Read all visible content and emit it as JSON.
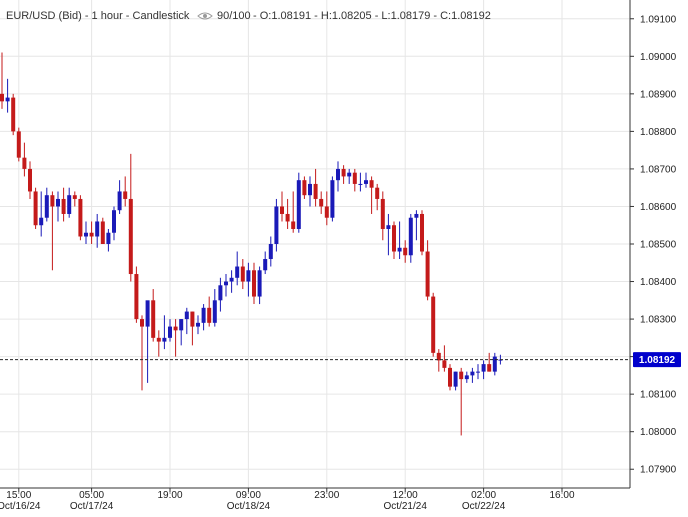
{
  "header": {
    "symbol_line": "EUR/USD (Bid) - 1 hour - Candlestick",
    "opacity_label": "90/100",
    "ohlc_text": "- O:1.08191 - H:1.08205 - L:1.08179 - C:1.08192"
  },
  "colors": {
    "up": "#1a1ab8",
    "down": "#c41a1a",
    "grid": "#e6e6e6",
    "axis": "#333333",
    "price_tag_bg": "#0000cc",
    "price_tag_text": "#ffffff"
  },
  "icons": {
    "opacity": "eye-icon"
  },
  "chart_data": {
    "type": "candlestick",
    "title": "EUR/USD (Bid) - 1 hour - Candlestick",
    "ylim": [
      1.0785,
      1.0915
    ],
    "y_ticks": [
      "1.07900",
      "1.08000",
      "1.08100",
      "1.08200",
      "1.08300",
      "1.08400",
      "1.08500",
      "1.08600",
      "1.08700",
      "1.08800",
      "1.08900",
      "1.09000",
      "1.09100"
    ],
    "x_ticks": [
      {
        "index": 3,
        "time": "15:00",
        "date": "Oct/16/24"
      },
      {
        "index": 16,
        "time": "05:00",
        "date": "Oct/17/24"
      },
      {
        "index": 30,
        "time": "19:00",
        "date": ""
      },
      {
        "index": 44,
        "time": "09:00",
        "date": "Oct/18/24"
      },
      {
        "index": 58,
        "time": "23:00",
        "date": ""
      },
      {
        "index": 72,
        "time": "12:00",
        "date": "Oct/21/24"
      },
      {
        "index": 86,
        "time": "02:00",
        "date": "Oct/22/24"
      },
      {
        "index": 100,
        "time": "16:00",
        "date": ""
      }
    ],
    "last_price": "1.08192",
    "last_price_value": 1.08192,
    "candles": [
      {
        "o": 1.089,
        "h": 1.0901,
        "l": 1.0886,
        "c": 1.0888
      },
      {
        "o": 1.0888,
        "h": 1.0894,
        "l": 1.0885,
        "c": 1.0889
      },
      {
        "o": 1.0889,
        "h": 1.089,
        "l": 1.0879,
        "c": 1.088
      },
      {
        "o": 1.088,
        "h": 1.0881,
        "l": 1.0872,
        "c": 1.0873
      },
      {
        "o": 1.0873,
        "h": 1.0877,
        "l": 1.0868,
        "c": 1.087
      },
      {
        "o": 1.087,
        "h": 1.0872,
        "l": 1.0862,
        "c": 1.0864
      },
      {
        "o": 1.0864,
        "h": 1.0865,
        "l": 1.0854,
        "c": 1.0855
      },
      {
        "o": 1.0855,
        "h": 1.0864,
        "l": 1.0852,
        "c": 1.0857
      },
      {
        "o": 1.0857,
        "h": 1.0865,
        "l": 1.0856,
        "c": 1.0863
      },
      {
        "o": 1.0863,
        "h": 1.0864,
        "l": 1.0843,
        "c": 1.086
      },
      {
        "o": 1.086,
        "h": 1.0864,
        "l": 1.0856,
        "c": 1.0862
      },
      {
        "o": 1.0862,
        "h": 1.0865,
        "l": 1.0856,
        "c": 1.0858
      },
      {
        "o": 1.0858,
        "h": 1.0865,
        "l": 1.0857,
        "c": 1.0863
      },
      {
        "o": 1.0863,
        "h": 1.0864,
        "l": 1.086,
        "c": 1.0862
      },
      {
        "o": 1.0862,
        "h": 1.0863,
        "l": 1.0851,
        "c": 1.0852
      },
      {
        "o": 1.0852,
        "h": 1.0856,
        "l": 1.085,
        "c": 1.0853
      },
      {
        "o": 1.0853,
        "h": 1.0856,
        "l": 1.085,
        "c": 1.0852
      },
      {
        "o": 1.0852,
        "h": 1.0858,
        "l": 1.0849,
        "c": 1.0856
      },
      {
        "o": 1.0856,
        "h": 1.0857,
        "l": 1.085,
        "c": 1.085
      },
      {
        "o": 1.085,
        "h": 1.0854,
        "l": 1.0848,
        "c": 1.0853
      },
      {
        "o": 1.0853,
        "h": 1.086,
        "l": 1.0851,
        "c": 1.0859
      },
      {
        "o": 1.0859,
        "h": 1.0867,
        "l": 1.0858,
        "c": 1.0864
      },
      {
        "o": 1.0864,
        "h": 1.0868,
        "l": 1.086,
        "c": 1.0862
      },
      {
        "o": 1.0862,
        "h": 1.0874,
        "l": 1.084,
        "c": 1.0842
      },
      {
        "o": 1.0842,
        "h": 1.0844,
        "l": 1.0829,
        "c": 1.083
      },
      {
        "o": 1.083,
        "h": 1.0831,
        "l": 1.0811,
        "c": 1.0828
      },
      {
        "o": 1.0828,
        "h": 1.0834,
        "l": 1.0813,
        "c": 1.0835
      },
      {
        "o": 1.0835,
        "h": 1.0838,
        "l": 1.0824,
        "c": 1.0825
      },
      {
        "o": 1.0825,
        "h": 1.0827,
        "l": 1.082,
        "c": 1.0824
      },
      {
        "o": 1.0824,
        "h": 1.0831,
        "l": 1.0822,
        "c": 1.0825
      },
      {
        "o": 1.0825,
        "h": 1.083,
        "l": 1.0824,
        "c": 1.0828
      },
      {
        "o": 1.0828,
        "h": 1.083,
        "l": 1.082,
        "c": 1.0827
      },
      {
        "o": 1.0827,
        "h": 1.083,
        "l": 1.0823,
        "c": 1.083
      },
      {
        "o": 1.083,
        "h": 1.0833,
        "l": 1.0826,
        "c": 1.0832
      },
      {
        "o": 1.0832,
        "h": 1.0832,
        "l": 1.0823,
        "c": 1.0828
      },
      {
        "o": 1.0828,
        "h": 1.0831,
        "l": 1.0826,
        "c": 1.0829
      },
      {
        "o": 1.0829,
        "h": 1.0834,
        "l": 1.0827,
        "c": 1.0833
      },
      {
        "o": 1.0833,
        "h": 1.0836,
        "l": 1.0828,
        "c": 1.0829
      },
      {
        "o": 1.0829,
        "h": 1.0838,
        "l": 1.0828,
        "c": 1.0835
      },
      {
        "o": 1.0835,
        "h": 1.0841,
        "l": 1.0832,
        "c": 1.0839
      },
      {
        "o": 1.0839,
        "h": 1.0842,
        "l": 1.0836,
        "c": 1.084
      },
      {
        "o": 1.084,
        "h": 1.0843,
        "l": 1.0837,
        "c": 1.0841
      },
      {
        "o": 1.0841,
        "h": 1.0848,
        "l": 1.0839,
        "c": 1.0844
      },
      {
        "o": 1.0844,
        "h": 1.0846,
        "l": 1.0838,
        "c": 1.084
      },
      {
        "o": 1.084,
        "h": 1.0845,
        "l": 1.0836,
        "c": 1.0843
      },
      {
        "o": 1.0843,
        "h": 1.0845,
        "l": 1.0834,
        "c": 1.0836
      },
      {
        "o": 1.0836,
        "h": 1.0844,
        "l": 1.0834,
        "c": 1.0843
      },
      {
        "o": 1.0843,
        "h": 1.0848,
        "l": 1.0842,
        "c": 1.0846
      },
      {
        "o": 1.0846,
        "h": 1.0852,
        "l": 1.0844,
        "c": 1.085
      },
      {
        "o": 1.085,
        "h": 1.0862,
        "l": 1.0848,
        "c": 1.086
      },
      {
        "o": 1.086,
        "h": 1.0864,
        "l": 1.0856,
        "c": 1.0858
      },
      {
        "o": 1.0858,
        "h": 1.0862,
        "l": 1.0854,
        "c": 1.0856
      },
      {
        "o": 1.0856,
        "h": 1.0864,
        "l": 1.0853,
        "c": 1.0854
      },
      {
        "o": 1.0854,
        "h": 1.0869,
        "l": 1.0853,
        "c": 1.0867
      },
      {
        "o": 1.0867,
        "h": 1.0868,
        "l": 1.0862,
        "c": 1.0863
      },
      {
        "o": 1.0863,
        "h": 1.0868,
        "l": 1.086,
        "c": 1.0866
      },
      {
        "o": 1.0866,
        "h": 1.087,
        "l": 1.086,
        "c": 1.0862
      },
      {
        "o": 1.0862,
        "h": 1.0864,
        "l": 1.0858,
        "c": 1.086
      },
      {
        "o": 1.086,
        "h": 1.0864,
        "l": 1.0855,
        "c": 1.0857
      },
      {
        "o": 1.0857,
        "h": 1.0868,
        "l": 1.0856,
        "c": 1.0867
      },
      {
        "o": 1.0867,
        "h": 1.0872,
        "l": 1.0864,
        "c": 1.087
      },
      {
        "o": 1.087,
        "h": 1.0871,
        "l": 1.0866,
        "c": 1.0868
      },
      {
        "o": 1.0868,
        "h": 1.087,
        "l": 1.0866,
        "c": 1.0869
      },
      {
        "o": 1.0869,
        "h": 1.087,
        "l": 1.0864,
        "c": 1.0866
      },
      {
        "o": 1.0866,
        "h": 1.0869,
        "l": 1.0864,
        "c": 1.0866
      },
      {
        "o": 1.0866,
        "h": 1.0869,
        "l": 1.0865,
        "c": 1.0867
      },
      {
        "o": 1.0867,
        "h": 1.0868,
        "l": 1.0858,
        "c": 1.0865
      },
      {
        "o": 1.0865,
        "h": 1.0866,
        "l": 1.0859,
        "c": 1.0862
      },
      {
        "o": 1.0862,
        "h": 1.0864,
        "l": 1.0851,
        "c": 1.0854
      },
      {
        "o": 1.0854,
        "h": 1.0858,
        "l": 1.0847,
        "c": 1.0855
      },
      {
        "o": 1.0855,
        "h": 1.0856,
        "l": 1.0846,
        "c": 1.0848
      },
      {
        "o": 1.0848,
        "h": 1.0856,
        "l": 1.0846,
        "c": 1.0849
      },
      {
        "o": 1.0849,
        "h": 1.0851,
        "l": 1.0845,
        "c": 1.0847
      },
      {
        "o": 1.0847,
        "h": 1.0858,
        "l": 1.0845,
        "c": 1.0857
      },
      {
        "o": 1.0857,
        "h": 1.0859,
        "l": 1.0851,
        "c": 1.0858
      },
      {
        "o": 1.0858,
        "h": 1.0859,
        "l": 1.0847,
        "c": 1.0848
      },
      {
        "o": 1.0848,
        "h": 1.0851,
        "l": 1.0835,
        "c": 1.0836
      },
      {
        "o": 1.0836,
        "h": 1.0837,
        "l": 1.082,
        "c": 1.0821
      },
      {
        "o": 1.0821,
        "h": 1.0822,
        "l": 1.0816,
        "c": 1.0819
      },
      {
        "o": 1.0819,
        "h": 1.0823,
        "l": 1.0816,
        "c": 1.0817
      },
      {
        "o": 1.0817,
        "h": 1.0818,
        "l": 1.0811,
        "c": 1.0812
      },
      {
        "o": 1.0812,
        "h": 1.0816,
        "l": 1.0811,
        "c": 1.0816
      },
      {
        "o": 1.0816,
        "h": 1.0817,
        "l": 1.0799,
        "c": 1.0814
      },
      {
        "o": 1.0814,
        "h": 1.0816,
        "l": 1.0813,
        "c": 1.0815
      },
      {
        "o": 1.0815,
        "h": 1.0817,
        "l": 1.0813,
        "c": 1.0816
      },
      {
        "o": 1.0816,
        "h": 1.0818,
        "l": 1.0814,
        "c": 1.0816
      },
      {
        "o": 1.0816,
        "h": 1.0819,
        "l": 1.0814,
        "c": 1.0818
      },
      {
        "o": 1.0818,
        "h": 1.0821,
        "l": 1.0816,
        "c": 1.0816
      },
      {
        "o": 1.0816,
        "h": 1.0821,
        "l": 1.0815,
        "c": 1.082
      },
      {
        "o": 1.08191,
        "h": 1.08205,
        "l": 1.08179,
        "c": 1.08192
      }
    ]
  }
}
